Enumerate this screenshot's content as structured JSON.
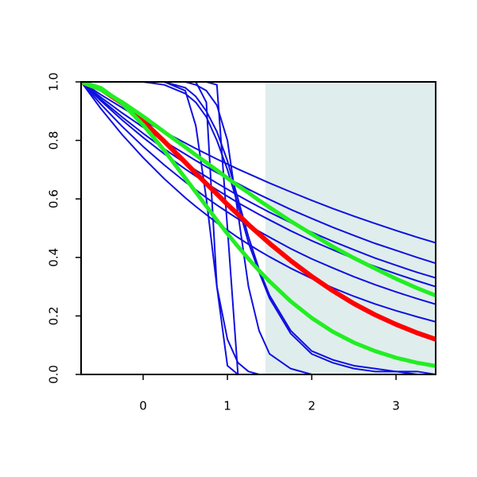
{
  "chart_data": {
    "type": "line",
    "x": [
      -0.736,
      -0.5,
      -0.25,
      0,
      0.25,
      0.5,
      0.625,
      0.75,
      0.875,
      1,
      1.125,
      1.25,
      1.375,
      1.5,
      1.75,
      2,
      2.25,
      2.5,
      2.75,
      3,
      3.25,
      3.47
    ],
    "xlim": [
      -0.736,
      3.47
    ],
    "ylim": [
      0,
      1
    ],
    "xticks": [
      0,
      1,
      2,
      3
    ],
    "yticks": [
      {
        "value": 0,
        "label": "0.0"
      },
      0.2,
      0.4,
      0.6,
      0.8,
      {
        "value": 1,
        "label": "1.0"
      }
    ],
    "shade": {
      "xlim": [
        1.45,
        3.47
      ],
      "color": "#e0eded"
    },
    "series": [
      {
        "color": "#1010e0",
        "width": 2,
        "values": [
          1,
          0.956,
          0.912,
          0.869,
          0.829,
          0.791,
          0.772,
          0.754,
          0.736,
          0.719,
          0.702,
          0.686,
          0.67,
          0.654,
          0.624,
          0.595,
          0.567,
          0.541,
          0.516,
          0.492,
          0.469,
          0.45
        ]
      },
      {
        "color": "#1010e0",
        "width": 2,
        "values": [
          1,
          0.947,
          0.894,
          0.845,
          0.797,
          0.753,
          0.731,
          0.71,
          0.69,
          0.671,
          0.652,
          0.633,
          0.615,
          0.598,
          0.564,
          0.533,
          0.503,
          0.475,
          0.448,
          0.424,
          0.4,
          0.38
        ]
      },
      {
        "color": "#1010e0",
        "width": 2,
        "values": [
          1,
          0.94,
          0.88,
          0.824,
          0.771,
          0.722,
          0.698,
          0.676,
          0.654,
          0.633,
          0.612,
          0.592,
          0.573,
          0.554,
          0.519,
          0.486,
          0.455,
          0.426,
          0.398,
          0.373,
          0.349,
          0.33
        ]
      },
      {
        "color": "#1010e0",
        "width": 2,
        "values": [
          1,
          0.935,
          0.87,
          0.81,
          0.754,
          0.702,
          0.678,
          0.654,
          0.631,
          0.609,
          0.587,
          0.567,
          0.547,
          0.528,
          0.491,
          0.457,
          0.426,
          0.396,
          0.369,
          0.344,
          0.32,
          0.3
        ]
      },
      {
        "color": "#1010e0",
        "width": 2,
        "values": [
          1,
          0.923,
          0.848,
          0.779,
          0.716,
          0.658,
          0.631,
          0.604,
          0.579,
          0.555,
          0.532,
          0.51,
          0.489,
          0.469,
          0.43,
          0.395,
          0.364,
          0.334,
          0.307,
          0.282,
          0.259,
          0.24
        ]
      },
      {
        "color": "#1010e0",
        "width": 2,
        "values": [
          1,
          0.908,
          0.82,
          0.741,
          0.669,
          0.604,
          0.574,
          0.546,
          0.518,
          0.493,
          0.468,
          0.445,
          0.423,
          0.402,
          0.363,
          0.328,
          0.296,
          0.267,
          0.241,
          0.218,
          0.197,
          0.18
        ]
      },
      {
        "color": "#1010e0",
        "width": 2,
        "values": [
          1,
          1,
          1,
          1,
          1,
          1,
          1,
          1,
          0.99,
          0.5,
          0,
          0,
          0,
          0,
          0,
          0,
          0,
          0,
          0,
          0,
          0,
          0
        ]
      },
      {
        "color": "#1010e0",
        "width": 2,
        "values": [
          1,
          1,
          1,
          1,
          1,
          1,
          1,
          0.93,
          0.3,
          0.03,
          0,
          0,
          0,
          0,
          0,
          0,
          0,
          0,
          0,
          0,
          0,
          0
        ]
      },
      {
        "color": "#1010e0",
        "width": 2,
        "values": [
          1,
          1,
          1,
          1,
          1,
          0.97,
          0.85,
          0.6,
          0.3,
          0.12,
          0.04,
          0.01,
          0,
          0,
          0,
          0,
          0,
          0,
          0,
          0,
          0,
          0
        ]
      },
      {
        "color": "#1010e0",
        "width": 2,
        "values": [
          1,
          1,
          1,
          1,
          1,
          1,
          0.99,
          0.97,
          0.92,
          0.8,
          0.55,
          0.3,
          0.15,
          0.07,
          0.02,
          0,
          0,
          0,
          0,
          0,
          0,
          0
        ]
      },
      {
        "color": "#1010e0",
        "width": 2,
        "values": [
          1,
          1,
          1,
          1,
          1,
          0.98,
          0.95,
          0.9,
          0.83,
          0.73,
          0.6,
          0.47,
          0.36,
          0.27,
          0.15,
          0.08,
          0.05,
          0.03,
          0.02,
          0.01,
          0.01,
          0
        ]
      },
      {
        "color": "#1010e0",
        "width": 2,
        "values": [
          1,
          1,
          1,
          1,
          0.99,
          0.96,
          0.93,
          0.88,
          0.8,
          0.7,
          0.58,
          0.45,
          0.35,
          0.26,
          0.14,
          0.07,
          0.04,
          0.02,
          0.01,
          0.01,
          0,
          0
        ]
      },
      {
        "color": "#ff0000",
        "width": 6,
        "values": [
          1,
          0.975,
          0.927,
          0.865,
          0.797,
          0.725,
          0.688,
          0.652,
          0.617,
          0.581,
          0.547,
          0.512,
          0.48,
          0.448,
          0.389,
          0.335,
          0.286,
          0.242,
          0.204,
          0.171,
          0.142,
          0.12
        ]
      },
      {
        "color": "#22ee22",
        "width": 5,
        "values": [
          1,
          0.979,
          0.927,
          0.853,
          0.766,
          0.671,
          0.623,
          0.575,
          0.527,
          0.481,
          0.437,
          0.395,
          0.355,
          0.318,
          0.25,
          0.193,
          0.146,
          0.109,
          0.08,
          0.057,
          0.04,
          0.029
        ]
      },
      {
        "color": "#22ee22",
        "width": 5,
        "values": [
          1,
          0.973,
          0.931,
          0.882,
          0.829,
          0.777,
          0.75,
          0.724,
          0.698,
          0.671,
          0.645,
          0.621,
          0.595,
          0.571,
          0.524,
          0.48,
          0.437,
          0.398,
          0.362,
          0.327,
          0.295,
          0.27
        ]
      }
    ]
  }
}
